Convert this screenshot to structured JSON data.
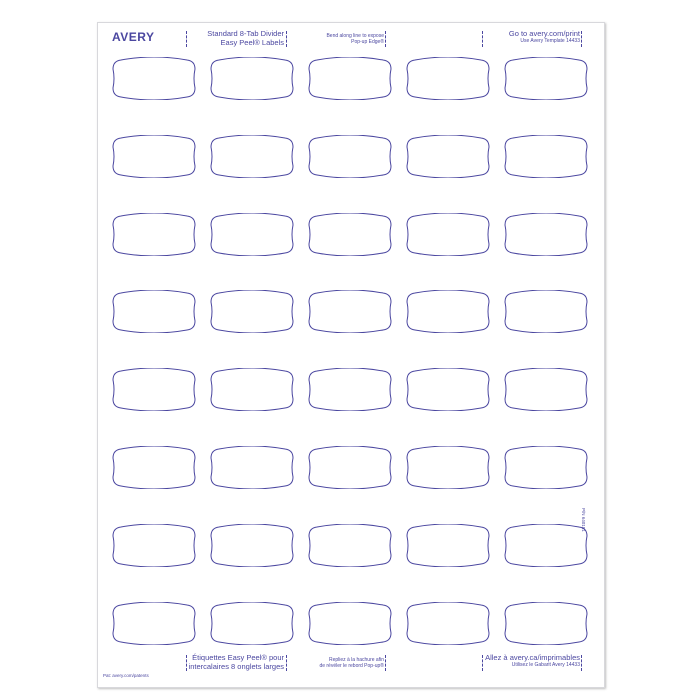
{
  "brand": "AVERY",
  "colors": {
    "ink": "#4b47a0",
    "label_outline": "#4b47a0",
    "sheet": "#ffffff"
  },
  "header": {
    "product_line1": "Standard 8-Tab Divider",
    "product_line2": "Easy Peel® Labels",
    "instruction_line1": "Bend along line to expose",
    "instruction_line2": "Pop-up Edge®",
    "website": "Go to avery.com/print",
    "template": "Use Avery Template 14433"
  },
  "footer": {
    "product_line1": "Étiquettes Easy Peel® pour",
    "product_line2": "intercalaires 8 onglets larges",
    "instruction_line1": "Repliez à la hachure afin",
    "instruction_line2": "de révéler le rebord Pop-up®",
    "website": "Allez à avery.ca/imprimables",
    "template": "Utilisez le Gabarit Avery 14433",
    "patent": "Pat: avery.com/patents"
  },
  "part_number": "P/N 640181",
  "labels": {
    "rows": 8,
    "columns": 5
  }
}
